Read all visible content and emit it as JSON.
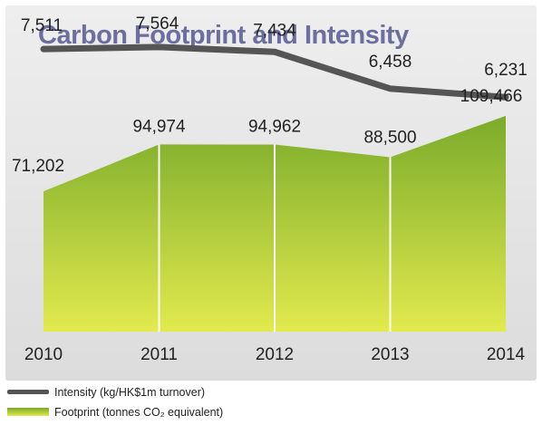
{
  "chart_data": {
    "type": "line",
    "title": "Carbon Footprint and Intensity",
    "categories": [
      "2010",
      "2011",
      "2012",
      "2013",
      "2014"
    ],
    "series": [
      {
        "name": "Intensity (kg/HK$1m turnover)",
        "kind": "line",
        "values": [
          7511,
          7564,
          7434,
          6458,
          6231
        ],
        "labels": [
          "7,511",
          "7,564",
          "7,434",
          "6,458",
          "6,231"
        ],
        "ylim": [
          0,
          8500
        ],
        "color": "#555555"
      },
      {
        "name": "Footprint (tonnes CO₂ equivalent)",
        "kind": "area",
        "values": [
          71202,
          94974,
          94962,
          88500,
          109466
        ],
        "labels": [
          "71,202",
          "94,974",
          "94,962",
          "88,500",
          "109,466"
        ],
        "ylim": [
          0,
          120000
        ],
        "color_top": "#7aab2a",
        "color_bottom": "#e2ea4e"
      }
    ],
    "grid": false,
    "legend": "bottom-left"
  }
}
